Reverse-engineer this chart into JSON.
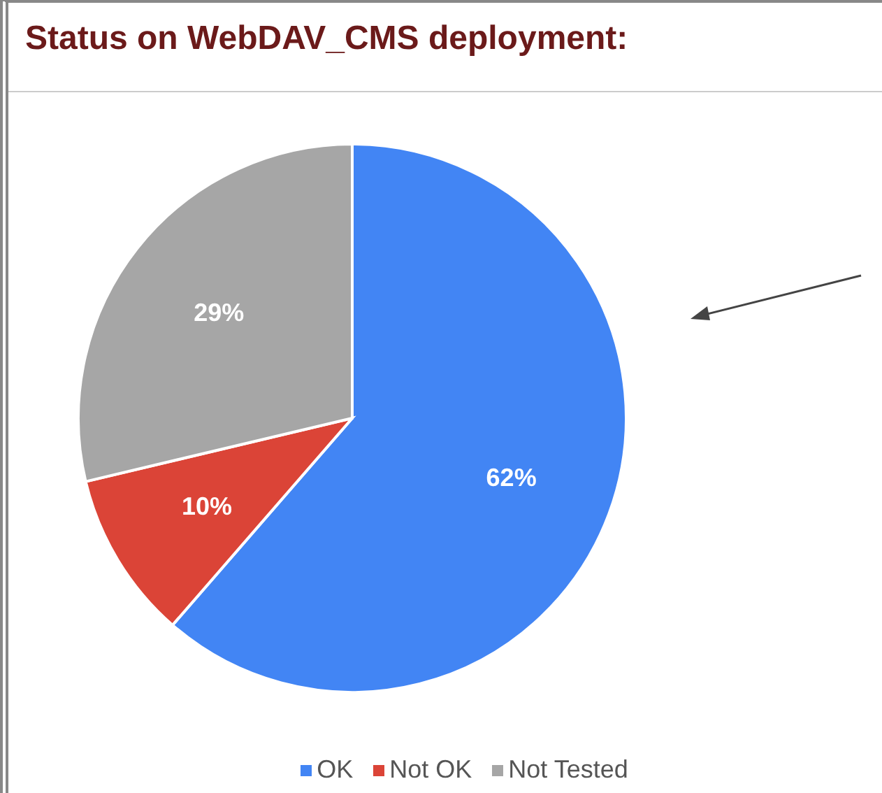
{
  "chart_data": {
    "type": "pie",
    "title": "Status on WebDAV_CMS deployment:",
    "categories": [
      "OK",
      "Not OK",
      "Not Tested"
    ],
    "values": [
      62,
      10,
      29
    ],
    "colors": [
      "#4285f4",
      "#db4437",
      "#a6a6a6"
    ],
    "value_labels": [
      "62%",
      "10%",
      "29%"
    ],
    "legend": "bottom"
  }
}
